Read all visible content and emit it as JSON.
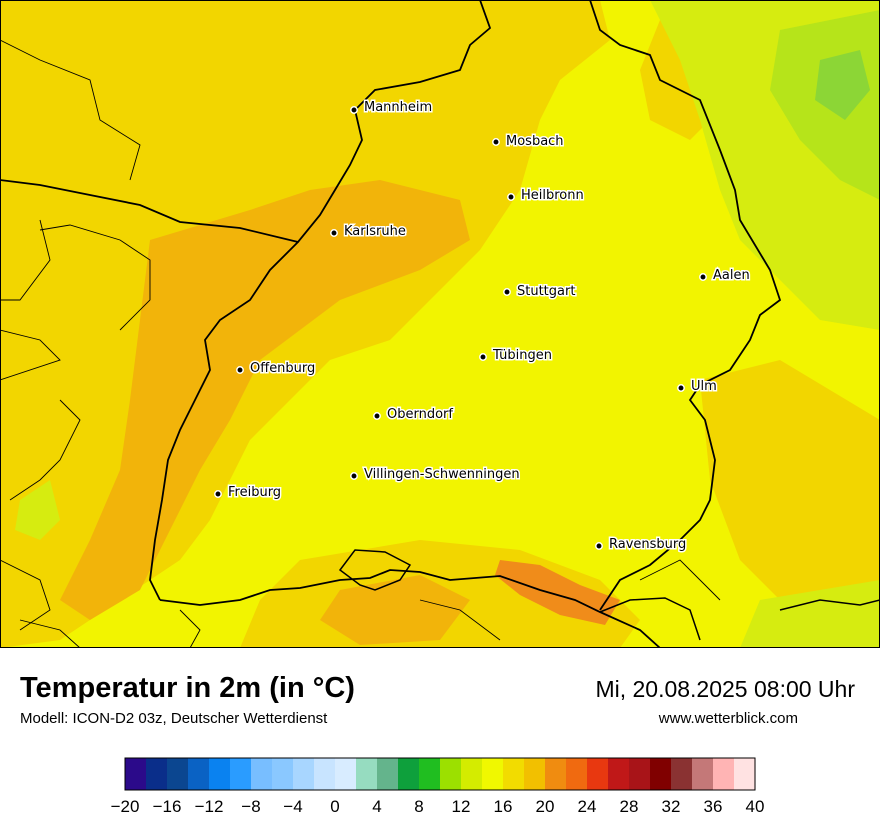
{
  "title": "Temperatur in 2m (in °C)",
  "subtitle": "Modell: ICON-D2 03z, Deutscher Wetterdienst",
  "datetime": "Mi, 20.08.2025 08:00 Uhr",
  "website": "www.wetterblick.com",
  "cities": [
    {
      "id": "mannheim",
      "name": "Mannheim"
    },
    {
      "id": "mosbach",
      "name": "Mosbach"
    },
    {
      "id": "heilbronn",
      "name": "Heilbronn"
    },
    {
      "id": "karlsruhe",
      "name": "Karlsruhe"
    },
    {
      "id": "aalen",
      "name": "Aalen"
    },
    {
      "id": "stuttgart",
      "name": "Stuttgart"
    },
    {
      "id": "tuebingen",
      "name": "Tübingen"
    },
    {
      "id": "offenburg",
      "name": "Offenburg"
    },
    {
      "id": "ulm",
      "name": "Ulm"
    },
    {
      "id": "oberndorf",
      "name": "Oberndorf"
    },
    {
      "id": "villingen",
      "name": "Villingen-Schwenningen"
    },
    {
      "id": "freiburg",
      "name": "Freiburg"
    },
    {
      "id": "ravensburg",
      "name": "Ravensburg"
    }
  ],
  "color_scale": {
    "unit": "°C",
    "min": -20,
    "max": 40,
    "step": 2,
    "tick_labels": [
      "−20",
      "−16",
      "−12",
      "−8",
      "−4",
      "0",
      "4",
      "8",
      "12",
      "16",
      "20",
      "24",
      "28",
      "32",
      "36",
      "40"
    ],
    "colors": [
      "#2b0a8a",
      "#0a2e8a",
      "#0b4690",
      "#0a62c4",
      "#0a82f0",
      "#2a9cff",
      "#78beff",
      "#8ac8ff",
      "#a8d6ff",
      "#c8e4ff",
      "#d8ecff",
      "#96dcc0",
      "#64b48c",
      "#0ea03c",
      "#20be20",
      "#9ce000",
      "#d4ec00",
      "#f0f800",
      "#f2dc00",
      "#f2c000",
      "#f08c10",
      "#f06a10",
      "#e83810",
      "#c01818",
      "#a81418",
      "#800000",
      "#8a3232",
      "#c47878",
      "#ffb4b4",
      "#ffe2e2"
    ]
  },
  "map_colors": {
    "t18": "#f2f400",
    "t20": "#f2d600",
    "t22": "#f2b40a",
    "t24": "#f08c1a",
    "t16": "#d6ec10",
    "t14": "#b6e41a",
    "t12": "#8cd636"
  }
}
